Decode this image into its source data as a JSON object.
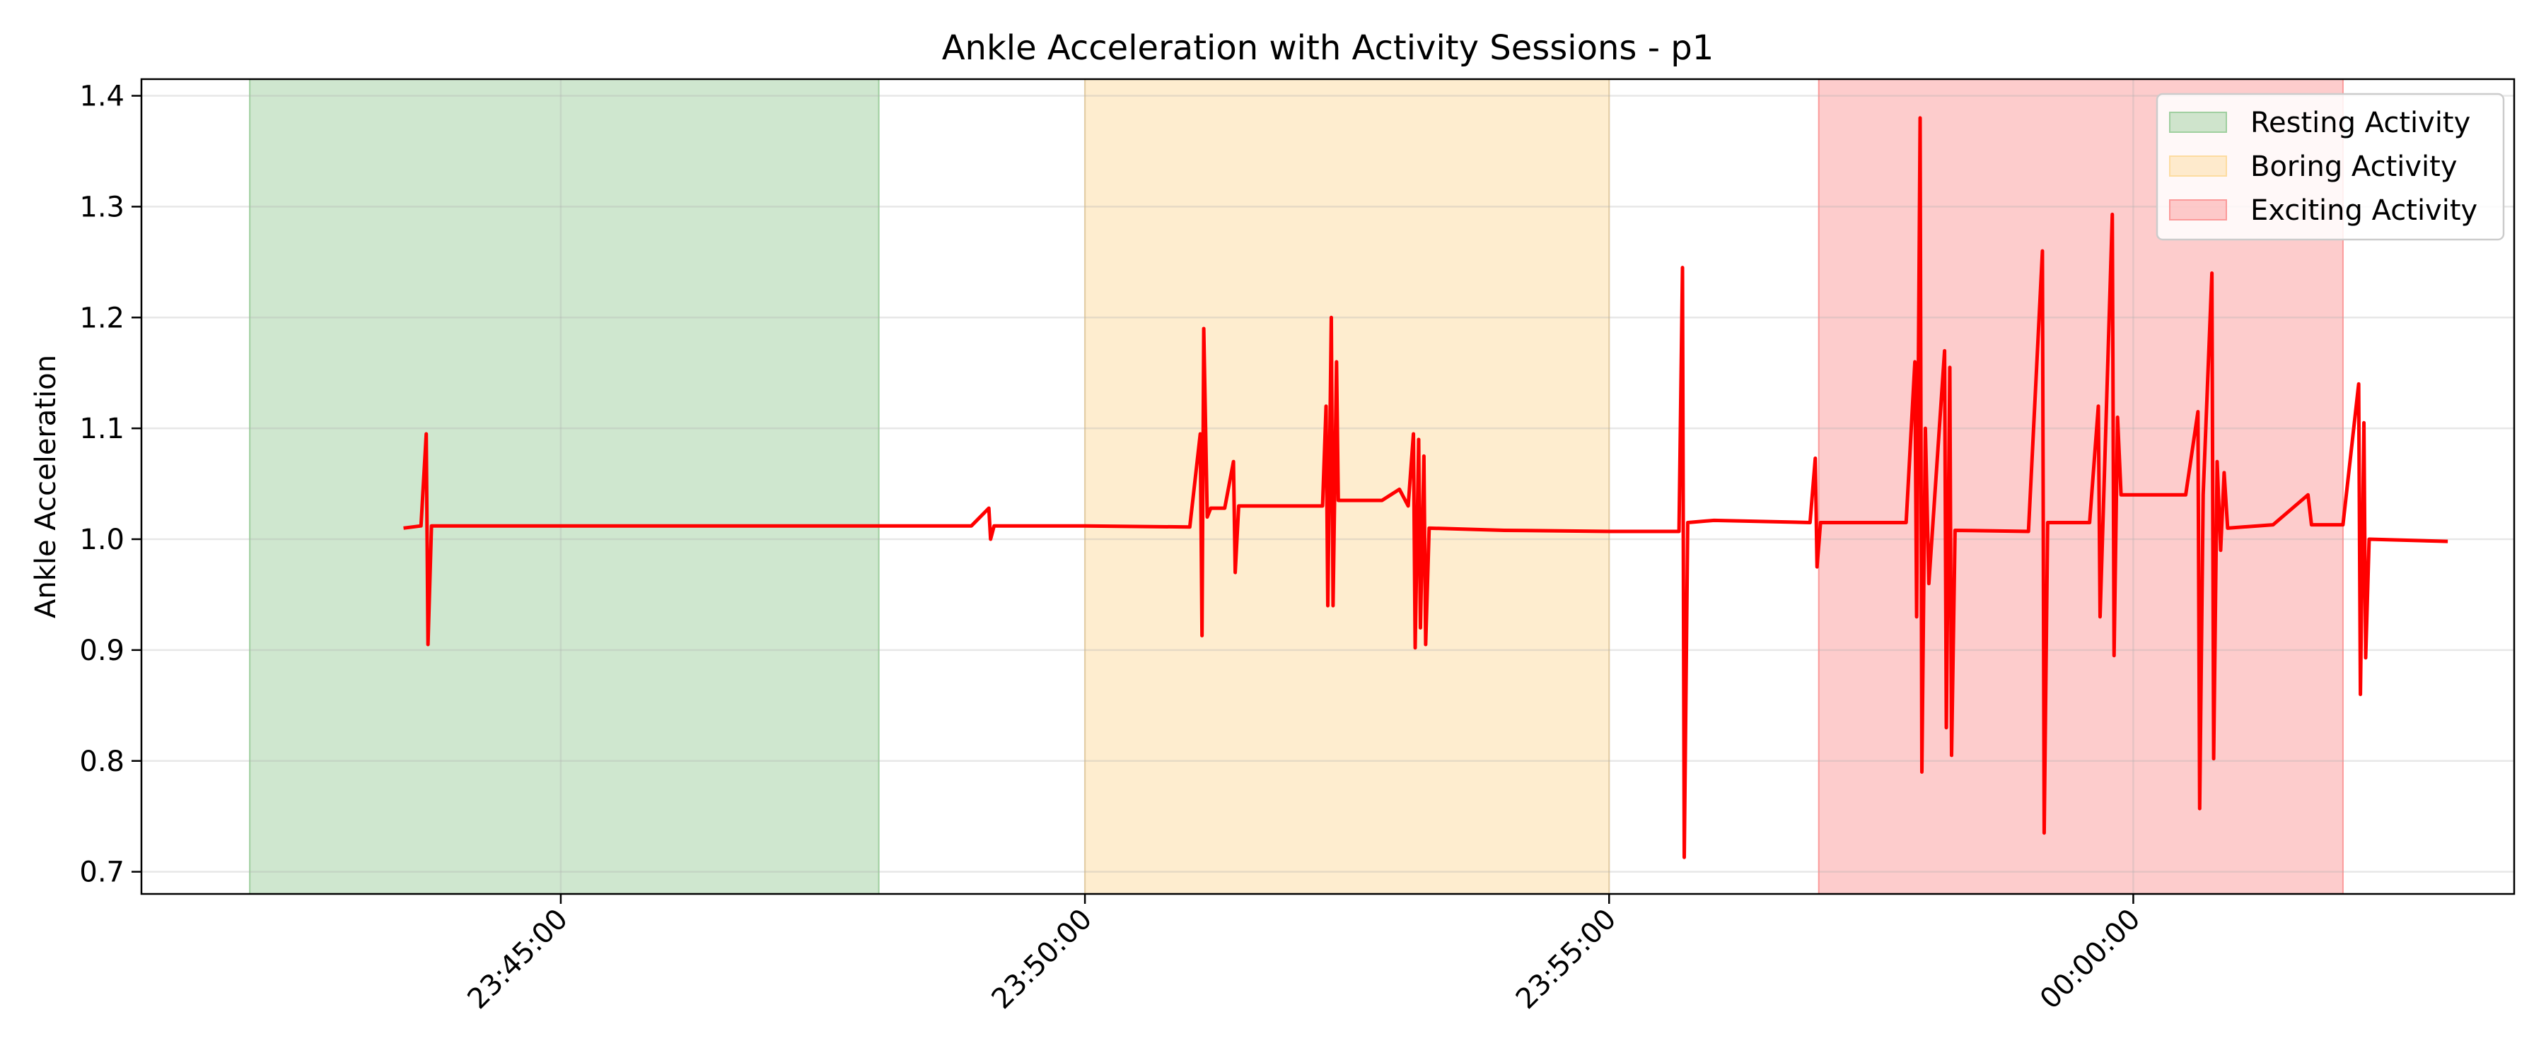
{
  "chart_data": {
    "type": "line",
    "title": "Ankle Acceleration with Activity Sessions - p1",
    "xlabel": "",
    "ylabel": "Ankle Acceleration",
    "x_axis_type": "time",
    "xlim": [
      "23:41:00",
      "00:03:38"
    ],
    "ylim": [
      0.68,
      1.415
    ],
    "x_ticks": [
      "23:45:00",
      "23:50:00",
      "23:55:00",
      "00:00:00"
    ],
    "y_ticks": [
      0.7,
      0.8,
      0.9,
      1.0,
      1.1,
      1.2,
      1.3,
      1.4
    ],
    "y_tick_labels": [
      "0.7",
      "0.8",
      "0.9",
      "1.0",
      "1.1",
      "1.2",
      "1.3",
      "1.4"
    ],
    "grid": true,
    "legend_position": "top-right",
    "sessions": [
      {
        "name": "Resting Activity",
        "start": "23:42:02",
        "end": "23:48:02",
        "color": "#9fcf9f"
      },
      {
        "name": "Boring Activity",
        "start": "23:50:00",
        "end": "23:55:00",
        "color": "#fddca0"
      },
      {
        "name": "Exciting Activity",
        "start": "23:57:00",
        "end": "00:02:00",
        "color": "#fb9a9a"
      }
    ],
    "series": [
      {
        "color": "#ff0000",
        "points": [
          [
            "23:43:30",
            1.01
          ],
          [
            "23:43:40",
            1.012
          ],
          [
            "23:43:43",
            1.095
          ],
          [
            "23:43:44",
            0.905
          ],
          [
            "23:43:46",
            1.012
          ],
          [
            "23:45:00",
            1.012
          ],
          [
            "23:46:30",
            1.012
          ],
          [
            "23:48:00",
            1.012
          ],
          [
            "23:48:55",
            1.012
          ],
          [
            "23:49:05",
            1.028
          ],
          [
            "23:49:06",
            1.0
          ],
          [
            "23:49:08",
            1.012
          ],
          [
            "23:50:00",
            1.012
          ],
          [
            "23:51:00",
            1.011
          ],
          [
            "23:51:06",
            1.095
          ],
          [
            "23:51:07",
            0.913
          ],
          [
            "23:51:08",
            1.19
          ],
          [
            "23:51:10",
            1.02
          ],
          [
            "23:51:12",
            1.028
          ],
          [
            "23:51:20",
            1.028
          ],
          [
            "23:51:25",
            1.07
          ],
          [
            "23:51:26",
            0.97
          ],
          [
            "23:51:28",
            1.03
          ],
          [
            "23:52:00",
            1.03
          ],
          [
            "23:52:16",
            1.03
          ],
          [
            "23:52:18",
            1.12
          ],
          [
            "23:52:19",
            0.94
          ],
          [
            "23:52:21",
            1.2
          ],
          [
            "23:52:22",
            0.94
          ],
          [
            "23:52:24",
            1.16
          ],
          [
            "23:52:25",
            1.035
          ],
          [
            "23:52:50",
            1.035
          ],
          [
            "23:53:00",
            1.045
          ],
          [
            "23:53:05",
            1.03
          ],
          [
            "23:53:08",
            1.095
          ],
          [
            "23:53:09",
            0.902
          ],
          [
            "23:53:11",
            1.09
          ],
          [
            "23:53:12",
            0.92
          ],
          [
            "23:53:14",
            1.075
          ],
          [
            "23:53:15",
            0.905
          ],
          [
            "23:53:17",
            1.01
          ],
          [
            "23:54:00",
            1.008
          ],
          [
            "23:55:00",
            1.007
          ],
          [
            "23:55:40",
            1.007
          ],
          [
            "23:55:42",
            1.245
          ],
          [
            "23:55:43",
            0.713
          ],
          [
            "23:55:45",
            1.015
          ],
          [
            "23:56:00",
            1.017
          ],
          [
            "23:56:55",
            1.015
          ],
          [
            "23:56:58",
            1.073
          ],
          [
            "23:56:59",
            0.975
          ],
          [
            "23:57:01",
            1.015
          ],
          [
            "23:57:50",
            1.015
          ],
          [
            "23:57:55",
            1.16
          ],
          [
            "23:57:56",
            0.93
          ],
          [
            "23:57:58",
            1.38
          ],
          [
            "23:57:59",
            0.79
          ],
          [
            "23:58:01",
            1.1
          ],
          [
            "23:58:03",
            0.96
          ],
          [
            "23:58:12",
            1.17
          ],
          [
            "23:58:13",
            0.83
          ],
          [
            "23:58:15",
            1.155
          ],
          [
            "23:58:16",
            0.805
          ],
          [
            "23:58:18",
            1.008
          ],
          [
            "23:59:00",
            1.007
          ],
          [
            "23:59:08",
            1.26
          ],
          [
            "23:59:09",
            0.735
          ],
          [
            "23:59:11",
            1.015
          ],
          [
            "23:59:35",
            1.015
          ],
          [
            "23:59:40",
            1.12
          ],
          [
            "23:59:41",
            0.93
          ],
          [
            "23:59:48",
            1.293
          ],
          [
            "23:59:49",
            0.895
          ],
          [
            "23:59:51",
            1.11
          ],
          [
            "23:59:53",
            1.04
          ],
          [
            "00:00:30",
            1.04
          ],
          [
            "00:00:37",
            1.115
          ],
          [
            "00:00:38",
            0.757
          ],
          [
            "00:00:40",
            1.04
          ],
          [
            "00:00:45",
            1.24
          ],
          [
            "00:00:46",
            0.802
          ],
          [
            "00:00:48",
            1.07
          ],
          [
            "00:00:50",
            0.99
          ],
          [
            "00:00:52",
            1.06
          ],
          [
            "00:00:54",
            1.01
          ],
          [
            "00:01:20",
            1.013
          ],
          [
            "00:01:40",
            1.04
          ],
          [
            "00:01:42",
            1.013
          ],
          [
            "00:02:00",
            1.013
          ],
          [
            "00:02:09",
            1.14
          ],
          [
            "00:02:10",
            0.86
          ],
          [
            "00:02:12",
            1.105
          ],
          [
            "00:02:13",
            0.893
          ],
          [
            "00:02:15",
            1.0
          ],
          [
            "00:03:00",
            0.998
          ]
        ]
      }
    ]
  }
}
